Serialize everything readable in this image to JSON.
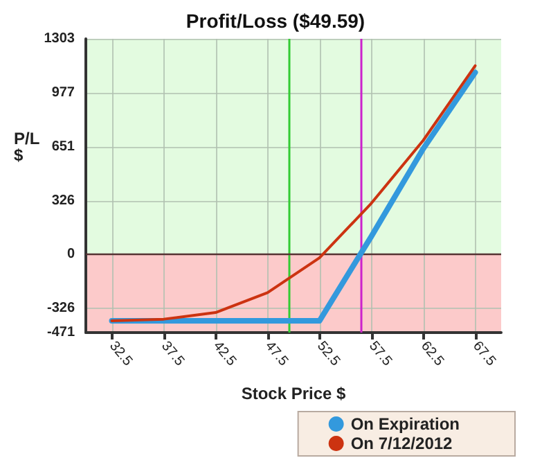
{
  "chart_data": {
    "type": "line",
    "title": "Profit/Loss ($49.59)",
    "xlabel": "Stock Price $",
    "ylabel": "P/L\n$",
    "x": [
      32.5,
      37.5,
      42.5,
      47.5,
      52.5,
      57.5,
      62.5,
      67.5
    ],
    "series": [
      {
        "name": "On Expiration",
        "color": "#3399dd",
        "values": [
          -400,
          -400,
          -400,
          -400,
          -400,
          110,
          640,
          1100
        ]
      },
      {
        "name": "On 7/12/2012",
        "color": "#cc3311",
        "values": [
          -400,
          -390,
          -350,
          -230,
          -20,
          310,
          690,
          1140
        ]
      }
    ],
    "xlim": [
      30,
      70
    ],
    "xticks": [
      32.5,
      37.5,
      42.5,
      47.5,
      52.5,
      57.5,
      62.5,
      67.5
    ],
    "ylim": [
      -471,
      1303
    ],
    "yticks": [
      -471,
      -326,
      0,
      326,
      651,
      977,
      1303
    ],
    "bands": [
      {
        "axis": "y",
        "from": 0,
        "to": 1303,
        "color": "#e3fbe0"
      },
      {
        "axis": "y",
        "from": -471,
        "to": 0,
        "color": "#fccaca"
      }
    ],
    "ref_lines": [
      {
        "axis": "x",
        "value": 49.59,
        "color": "#33cc33"
      },
      {
        "axis": "x",
        "value": 56.5,
        "color": "#cc22cc"
      },
      {
        "axis": "y",
        "value": 0,
        "color": "#553333"
      }
    ],
    "grid": true,
    "legend": "bottom right",
    "marker": "none",
    "line_style": "solid"
  }
}
